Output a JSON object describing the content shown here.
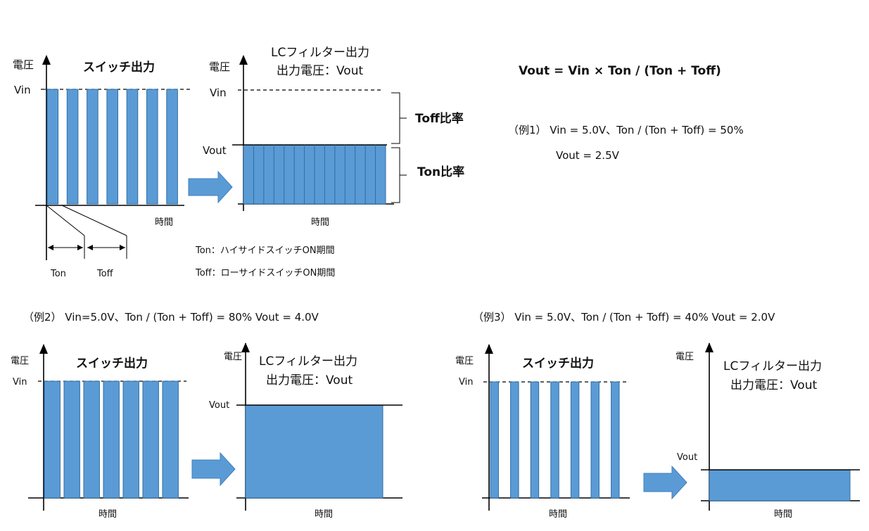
{
  "labels": {
    "voltage": "電圧",
    "time": "時間",
    "vin": "Vin",
    "vout": "Vout",
    "switch_output": "スイッチ出力",
    "lc_filter_line1": "LCフィルター出力",
    "lc_filter_line2": "出力電圧：Vout",
    "toff_ratio": "Toff比率",
    "ton_ratio": "Ton比率",
    "ton": "Ton",
    "toff": "Toff"
  },
  "legend": {
    "ton_def": "Ton：ハイサイドスイッチON期間",
    "toff_def": "Toff：ローサイドスイッチON期間"
  },
  "formula": "Vout = Vin  ×  Ton / (Ton + Toff)",
  "example1": {
    "line1": "（例1）  Vin = 5.0V、Ton / (Ton + Toff) = 50%",
    "line2": "Vout = 2.5V",
    "duty": 0.5
  },
  "example2": {
    "caption": "（例2）  Vin=5.0V、Ton / (Ton + Toff) = 80%     Vout = 4.0V",
    "duty": 0.8
  },
  "example3": {
    "caption": "（例3）  Vin = 5.0V、Ton / (Ton + Toff) = 40%     Vout = 2.0V",
    "duty": 0.4
  },
  "colors": {
    "bar_fill": "#5b9bd5",
    "bar_stroke": "#2e6da4"
  }
}
